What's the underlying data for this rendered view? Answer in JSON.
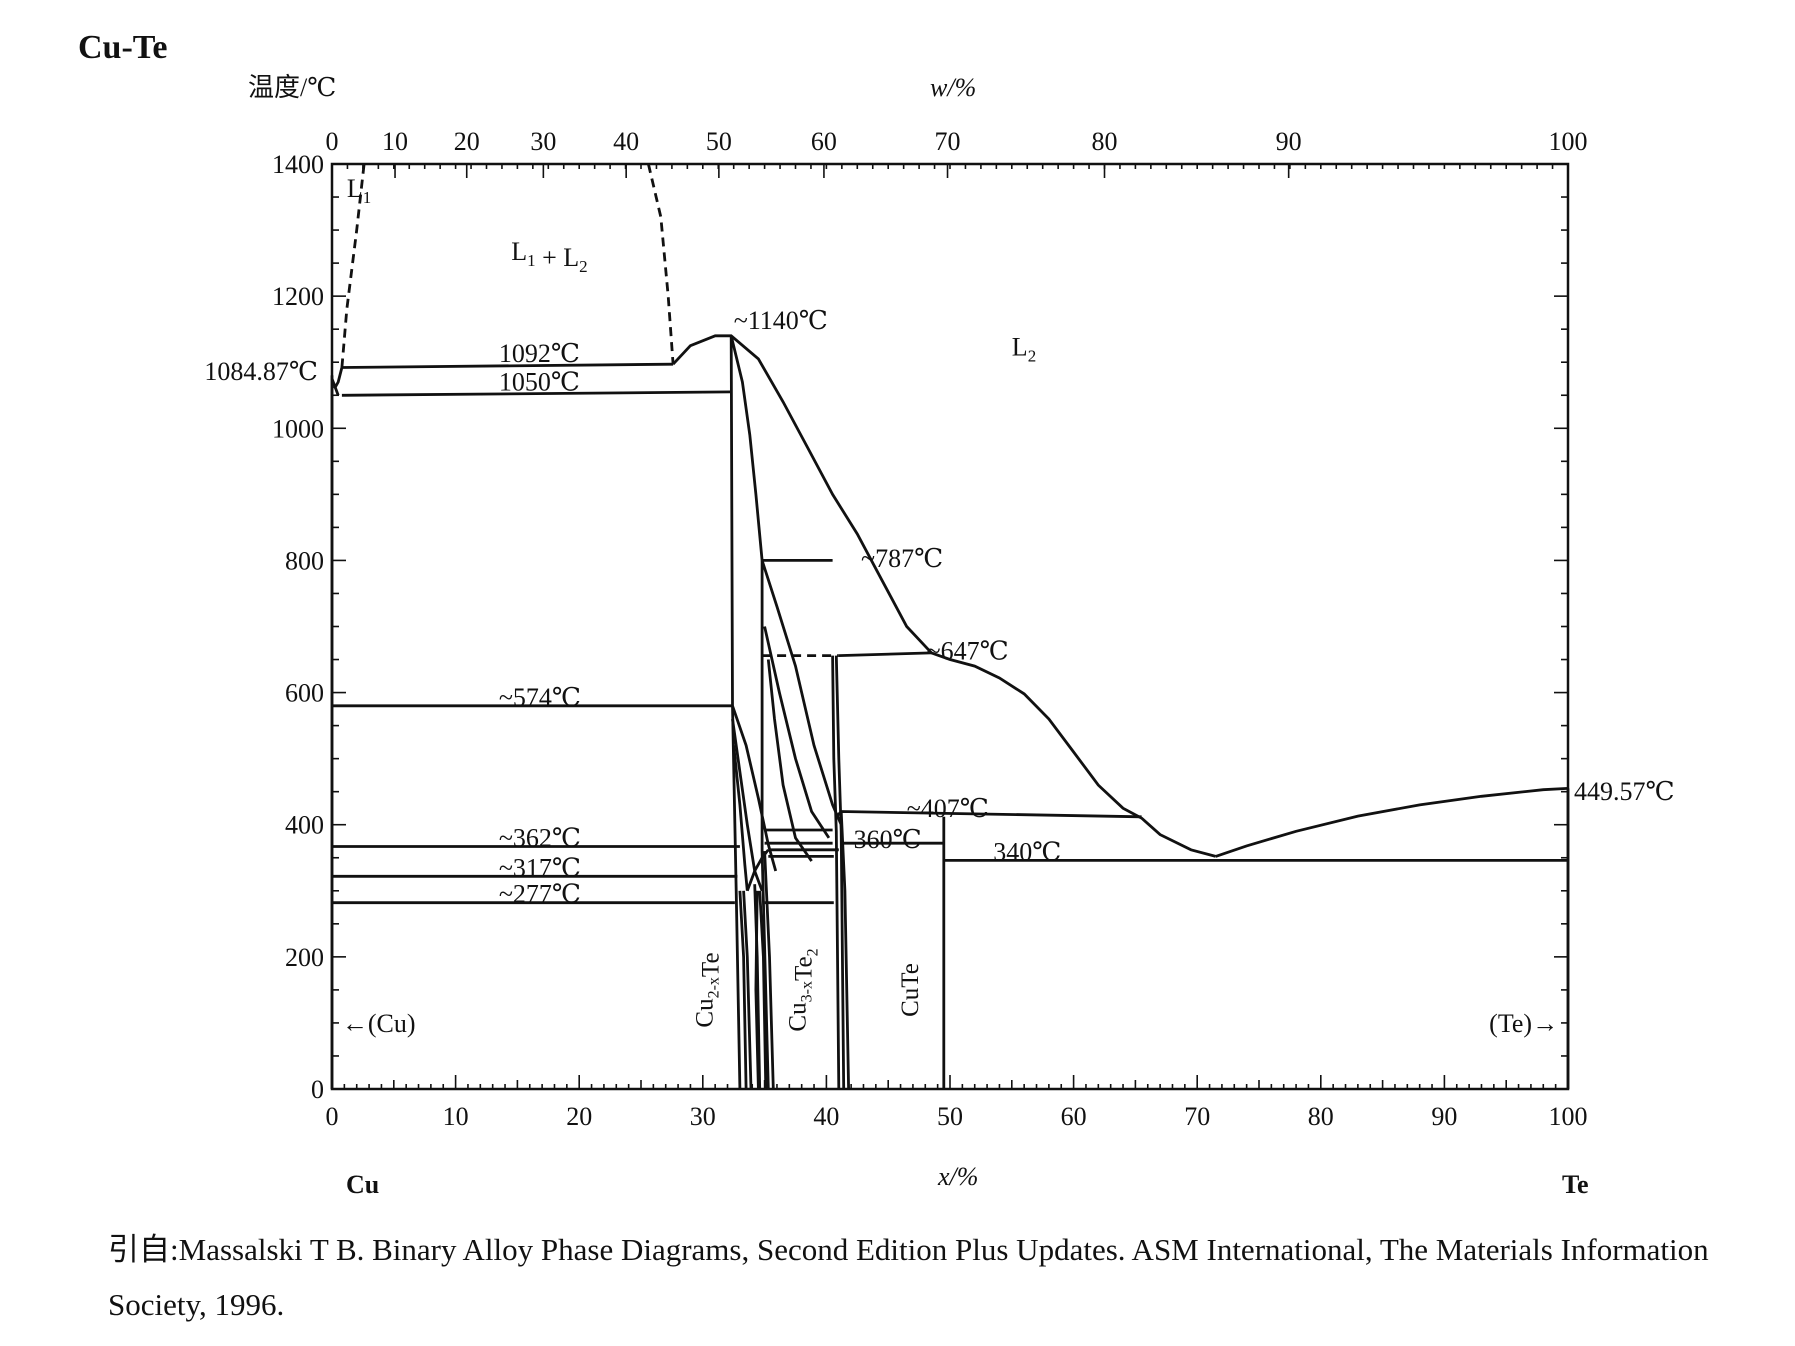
{
  "chart_data": {
    "type": "phase-diagram",
    "title": "Cu-Te",
    "ylabel": "温度/℃",
    "xlabel_top": "w/%",
    "xlabel_bottom": "x/%",
    "ylim": [
      0,
      1400
    ],
    "xlim": [
      0,
      100
    ],
    "y_ticks": [
      "0",
      "200",
      "400",
      "600",
      "800",
      "1000",
      "1200",
      "1400"
    ],
    "x_ticks_bottom": [
      "0",
      "10",
      "20",
      "30",
      "40",
      "50",
      "60",
      "70",
      "80",
      "90",
      "100"
    ],
    "x_ticks_top": [
      "0",
      "10",
      "20",
      "30",
      "40",
      "50",
      "60",
      "70",
      "80",
      "90",
      "100"
    ],
    "top_tick_positions_at_pct": [
      0,
      5.1,
      10.9,
      17.1,
      23.8,
      31.3,
      39.8,
      49.8,
      62.5,
      77.4,
      100
    ],
    "endpoints": {
      "left": "Cu",
      "right": "Te"
    },
    "regions": [
      {
        "label": "L₁",
        "x": 1.2,
        "y": 1350
      },
      {
        "label": "L₁ + L₂",
        "x": 14.5,
        "y": 1255
      },
      {
        "label": "L₂",
        "x": 55,
        "y": 1110
      }
    ],
    "temperature_labels": [
      {
        "text": "1084.87℃",
        "T": 1084.87,
        "side": "left-outside"
      },
      {
        "text": "1092℃",
        "x": 13.5,
        "T": 1100
      },
      {
        "text": "1050℃",
        "x": 13.5,
        "T": 1057
      },
      {
        "text": "~1140℃",
        "x": 32.5,
        "T": 1150
      },
      {
        "text": "~787℃",
        "x": 42.8,
        "T": 790
      },
      {
        "text": "~647℃",
        "x": 48.1,
        "T": 650
      },
      {
        "text": "~574℃",
        "x": 13.5,
        "T": 580
      },
      {
        "text": "~407℃",
        "x": 46.5,
        "T": 412
      },
      {
        "text": "449.57℃",
        "T": 449.57,
        "side": "right-outside"
      },
      {
        "text": "~362℃",
        "x": 13.5,
        "T": 367
      },
      {
        "text": "360℃",
        "x": 42.2,
        "T": 365
      },
      {
        "text": "340℃",
        "x": 53.5,
        "T": 346
      },
      {
        "text": "~317℃",
        "x": 13.5,
        "T": 322
      },
      {
        "text": "~277℃",
        "x": 13.5,
        "T": 282
      }
    ],
    "phase_labels": [
      {
        "text": "Cu",
        "sub": "2-x",
        "tail": "Te",
        "x": 30.8
      },
      {
        "text": "Cu",
        "sub": "3-x",
        "tail": "Te",
        "tail_sub": "2",
        "x": 38.3
      },
      {
        "text": "CuTe",
        "sub": "",
        "tail": "",
        "x": 47.4
      }
    ],
    "arrow_labels": [
      {
        "text": "←(Cu)",
        "direction": "left"
      },
      {
        "text": "(Te)→",
        "direction": "right"
      }
    ],
    "curves": [
      {
        "style": "solid",
        "points": [
          [
            0,
            1080
          ],
          [
            0,
            0
          ]
        ]
      },
      {
        "style": "solid",
        "points": [
          [
            0,
            1075
          ],
          [
            0.3,
            1060
          ],
          [
            0.5,
            1050
          ]
        ]
      },
      {
        "style": "solid",
        "points": [
          [
            0.8,
            1050
          ],
          [
            32.3,
            1055
          ]
        ]
      },
      {
        "style": "solid",
        "points": [
          [
            0.8,
            1092
          ],
          [
            27.6,
            1097
          ]
        ]
      },
      {
        "style": "solid",
        "points": [
          [
            0.8,
            1092
          ],
          [
            0.5,
            1070
          ],
          [
            0.2,
            1060
          ]
        ]
      },
      {
        "style": "dash",
        "points": [
          [
            0.8,
            1092
          ],
          [
            1.2,
            1180
          ],
          [
            2.0,
            1300
          ],
          [
            2.6,
            1400
          ]
        ]
      },
      {
        "style": "dash",
        "points": [
          [
            25.6,
            1400
          ],
          [
            26.6,
            1320
          ],
          [
            27.2,
            1200
          ],
          [
            27.6,
            1097
          ]
        ]
      },
      {
        "style": "solid",
        "points": [
          [
            27.6,
            1097
          ],
          [
            29,
            1125
          ],
          [
            31,
            1140
          ],
          [
            32.3,
            1140
          ],
          [
            34.5,
            1105
          ],
          [
            36.5,
            1040
          ],
          [
            38.5,
            970
          ],
          [
            40.5,
            900
          ],
          [
            42.5,
            840
          ],
          [
            44.5,
            770
          ],
          [
            46.5,
            700
          ],
          [
            48.5,
            660
          ],
          [
            50,
            650
          ],
          [
            52,
            640
          ],
          [
            54,
            622
          ],
          [
            56,
            598
          ],
          [
            58,
            560
          ],
          [
            60,
            510
          ],
          [
            62,
            460
          ],
          [
            64,
            425
          ],
          [
            65.5,
            410
          ],
          [
            67,
            385
          ],
          [
            69.5,
            362
          ],
          [
            71.5,
            352
          ]
        ]
      },
      {
        "style": "solid",
        "points": [
          [
            71.5,
            352
          ],
          [
            74,
            368
          ],
          [
            78,
            390
          ],
          [
            83,
            413
          ],
          [
            88,
            430
          ],
          [
            93,
            443
          ],
          [
            98,
            453
          ],
          [
            100,
            455
          ]
        ]
      },
      {
        "style": "solid",
        "points": [
          [
            32.3,
            1140
          ],
          [
            33.2,
            1070
          ],
          [
            33.8,
            990
          ],
          [
            34.3,
            900
          ],
          [
            34.8,
            800
          ]
        ]
      },
      {
        "style": "solid",
        "points": [
          [
            32.3,
            1140
          ],
          [
            32.4,
            580
          ],
          [
            32.7,
            300
          ],
          [
            33.0,
            0
          ]
        ]
      },
      {
        "style": "solid",
        "points": [
          [
            34.8,
            800
          ],
          [
            40.5,
            800
          ]
        ]
      },
      {
        "style": "dash",
        "points": [
          [
            34.8,
            656
          ],
          [
            41,
            656
          ]
        ]
      },
      {
        "style": "solid",
        "points": [
          [
            41,
            656
          ],
          [
            48.5,
            660
          ]
        ]
      },
      {
        "style": "solid",
        "points": [
          [
            0,
            580
          ],
          [
            32.4,
            580
          ]
        ]
      },
      {
        "style": "solid",
        "points": [
          [
            0,
            367
          ],
          [
            33,
            367
          ]
        ]
      },
      {
        "style": "solid",
        "points": [
          [
            0,
            322
          ],
          [
            32.8,
            322
          ]
        ]
      },
      {
        "style": "solid",
        "points": [
          [
            0,
            282
          ],
          [
            32.6,
            282
          ]
        ]
      },
      {
        "style": "solid",
        "points": [
          [
            32.4,
            580
          ],
          [
            33.5,
            520
          ],
          [
            34.5,
            440
          ],
          [
            35.3,
            370
          ],
          [
            35.9,
            330
          ]
        ]
      },
      {
        "style": "solid",
        "points": [
          [
            32.4,
            560
          ],
          [
            33.0,
            480
          ],
          [
            33.6,
            400
          ],
          [
            34.2,
            330
          ],
          [
            34.8,
            300
          ]
        ]
      },
      {
        "style": "solid",
        "points": [
          [
            32.5,
            520
          ],
          [
            33.0,
            430
          ],
          [
            33.4,
            340
          ],
          [
            33.6,
            300
          ]
        ]
      },
      {
        "style": "solid",
        "points": [
          [
            33,
            300
          ],
          [
            33.3,
            200
          ],
          [
            33.5,
            0
          ]
        ]
      },
      {
        "style": "solid",
        "points": [
          [
            33.3,
            300
          ],
          [
            33.6,
            200
          ],
          [
            33.9,
            0
          ]
        ]
      },
      {
        "style": "solid",
        "points": [
          [
            34.2,
            310
          ],
          [
            34.4,
            200
          ],
          [
            34.6,
            0
          ]
        ]
      },
      {
        "style": "solid",
        "points": [
          [
            34.6,
            300
          ],
          [
            34.9,
            200
          ],
          [
            35.1,
            0
          ]
        ]
      },
      {
        "style": "solid",
        "points": [
          [
            34.4,
            300
          ],
          [
            34.3,
            150
          ],
          [
            34.5,
            0
          ]
        ]
      },
      {
        "style": "solid",
        "points": [
          [
            34.8,
            800
          ],
          [
            34.8,
            360
          ],
          [
            35.3,
            0
          ]
        ]
      },
      {
        "style": "solid",
        "points": [
          [
            35.0,
            360
          ],
          [
            35.4,
            200
          ],
          [
            35.7,
            0
          ]
        ]
      },
      {
        "style": "solid",
        "points": [
          [
            33.6,
            300
          ],
          [
            34.2,
            330
          ],
          [
            34.8,
            350
          ],
          [
            35.3,
            362
          ]
        ]
      },
      {
        "style": "solid",
        "points": [
          [
            34.8,
            800
          ],
          [
            36,
            730
          ],
          [
            37.5,
            640
          ],
          [
            39,
            520
          ],
          [
            40.5,
            430
          ],
          [
            41.2,
            400
          ]
        ]
      },
      {
        "style": "solid",
        "points": [
          [
            35.0,
            700
          ],
          [
            36.2,
            600
          ],
          [
            37.5,
            500
          ],
          [
            38.8,
            420
          ],
          [
            40.2,
            380
          ]
        ]
      },
      {
        "style": "solid",
        "points": [
          [
            35.3,
            650
          ],
          [
            35.8,
            560
          ],
          [
            36.5,
            460
          ],
          [
            37.5,
            380
          ],
          [
            38.8,
            345
          ]
        ]
      },
      {
        "style": "solid",
        "points": [
          [
            40.5,
            656
          ],
          [
            40.6,
            500
          ],
          [
            40.8,
            390
          ],
          [
            41.0,
            0
          ]
        ]
      },
      {
        "style": "solid",
        "points": [
          [
            40.8,
            656
          ],
          [
            41.0,
            500
          ],
          [
            41.2,
            390
          ],
          [
            41.4,
            0
          ]
        ]
      },
      {
        "style": "solid",
        "points": [
          [
            41.2,
            420
          ],
          [
            41.5,
            300
          ],
          [
            41.8,
            0
          ]
        ]
      },
      {
        "style": "solid",
        "points": [
          [
            35.0,
            392
          ],
          [
            40.5,
            392
          ]
        ]
      },
      {
        "style": "solid",
        "points": [
          [
            35.0,
            372
          ],
          [
            40.5,
            372
          ]
        ]
      },
      {
        "style": "solid",
        "points": [
          [
            35.3,
            362
          ],
          [
            41.0,
            362
          ]
        ]
      },
      {
        "style": "solid",
        "points": [
          [
            35.3,
            352
          ],
          [
            40.6,
            352
          ]
        ]
      },
      {
        "style": "solid",
        "points": [
          [
            35.0,
            282
          ],
          [
            40.6,
            282
          ]
        ]
      },
      {
        "style": "solid",
        "points": [
          [
            40.8,
            412
          ],
          [
            41.2,
            420
          ],
          [
            65.5,
            412
          ]
        ]
      },
      {
        "style": "solid",
        "points": [
          [
            41.2,
            372
          ],
          [
            49.5,
            372
          ]
        ]
      },
      {
        "style": "solid",
        "points": [
          [
            49.5,
            412
          ],
          [
            49.5,
            0
          ]
        ]
      },
      {
        "style": "solid",
        "points": [
          [
            49.5,
            346
          ],
          [
            100,
            346
          ]
        ]
      },
      {
        "style": "solid",
        "points": [
          [
            100,
            455
          ],
          [
            100,
            0
          ]
        ]
      }
    ]
  },
  "citation": {
    "prefix": "引自:",
    "text": "Massalski T B.  Binary Alloy Phase Diagrams, Second Edition Plus Updates.  ASM International, The Materials Information Society, 1996."
  }
}
